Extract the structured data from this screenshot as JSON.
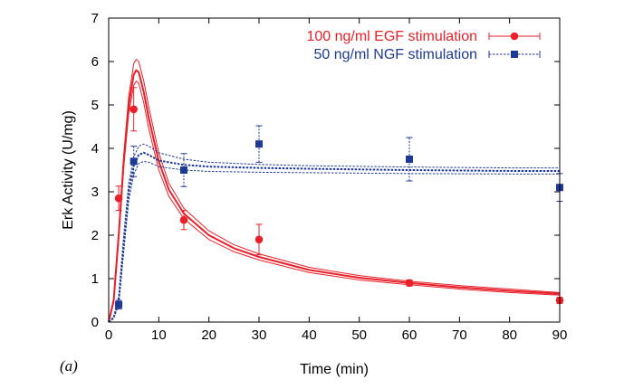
{
  "panel_label": "(a)",
  "chart_data": {
    "type": "line",
    "xlabel": "Time (min)",
    "ylabel": "Erk Activity (U/mg)",
    "xlim": [
      0,
      90
    ],
    "ylim": [
      0,
      7
    ],
    "x_ticks": [
      0,
      10,
      20,
      30,
      40,
      50,
      60,
      70,
      80,
      90
    ],
    "y_ticks": [
      0,
      1,
      2,
      3,
      4,
      5,
      6,
      7
    ],
    "grid": false,
    "legend_position": "top-right",
    "colors": {
      "egf": "#e8202a",
      "ngf": "#1f3a93"
    },
    "series": [
      {
        "name": "100 ng/ml EGF stimulation",
        "marker": "circle",
        "points": [
          {
            "x": 2,
            "y": 2.85,
            "err": 0.28
          },
          {
            "x": 5,
            "y": 4.9,
            "err": 0.5
          },
          {
            "x": 15,
            "y": 2.35,
            "err": 0.22
          },
          {
            "x": 30,
            "y": 1.9,
            "err": 0.35
          },
          {
            "x": 60,
            "y": 0.9,
            "err": 0.07
          },
          {
            "x": 90,
            "y": 0.5,
            "err": 0.07
          }
        ],
        "model_curves": [
          [
            [
              0,
              0
            ],
            [
              1,
              0.5
            ],
            [
              2,
              2.0
            ],
            [
              3,
              3.7
            ],
            [
              4,
              5.0
            ],
            [
              5,
              5.7
            ],
            [
              5.5,
              5.8
            ],
            [
              6,
              5.75
            ],
            [
              7,
              5.3
            ],
            [
              8,
              4.7
            ],
            [
              10,
              3.7
            ],
            [
              12,
              3.05
            ],
            [
              15,
              2.5
            ],
            [
              20,
              2.0
            ],
            [
              25,
              1.7
            ],
            [
              30,
              1.5
            ],
            [
              40,
              1.2
            ],
            [
              50,
              1.02
            ],
            [
              60,
              0.9
            ],
            [
              70,
              0.8
            ],
            [
              80,
              0.72
            ],
            [
              90,
              0.65
            ]
          ],
          [
            [
              0,
              0
            ],
            [
              1,
              0.55
            ],
            [
              2,
              2.1
            ],
            [
              3,
              3.85
            ],
            [
              4,
              5.2
            ],
            [
              5,
              5.95
            ],
            [
              5.5,
              6.05
            ],
            [
              6,
              6.0
            ],
            [
              7,
              5.55
            ],
            [
              8,
              4.95
            ],
            [
              10,
              3.9
            ],
            [
              12,
              3.2
            ],
            [
              15,
              2.62
            ],
            [
              20,
              2.1
            ],
            [
              25,
              1.78
            ],
            [
              30,
              1.57
            ],
            [
              40,
              1.26
            ],
            [
              50,
              1.07
            ],
            [
              60,
              0.94
            ],
            [
              70,
              0.84
            ],
            [
              80,
              0.76
            ],
            [
              90,
              0.68
            ]
          ],
          [
            [
              0,
              0
            ],
            [
              1,
              0.45
            ],
            [
              2,
              1.9
            ],
            [
              3,
              3.55
            ],
            [
              4,
              4.8
            ],
            [
              5,
              5.45
            ],
            [
              5.5,
              5.55
            ],
            [
              6,
              5.5
            ],
            [
              7,
              5.05
            ],
            [
              8,
              4.45
            ],
            [
              10,
              3.5
            ],
            [
              12,
              2.9
            ],
            [
              15,
              2.38
            ],
            [
              20,
              1.9
            ],
            [
              25,
              1.62
            ],
            [
              30,
              1.43
            ],
            [
              40,
              1.14
            ],
            [
              50,
              0.97
            ],
            [
              60,
              0.86
            ],
            [
              70,
              0.76
            ],
            [
              80,
              0.68
            ],
            [
              90,
              0.62
            ]
          ]
        ]
      },
      {
        "name": "50 ng/ml NGF stimulation",
        "marker": "square",
        "points": [
          {
            "x": 2,
            "y": 0.4,
            "err": 0.1
          },
          {
            "x": 5,
            "y": 3.7,
            "err": 0.35
          },
          {
            "x": 15,
            "y": 3.5,
            "err": 0.38
          },
          {
            "x": 30,
            "y": 4.1,
            "err": 0.42
          },
          {
            "x": 60,
            "y": 3.75,
            "err": 0.5
          },
          {
            "x": 90,
            "y": 3.1,
            "err": 0.32
          }
        ],
        "model_curves": [
          [
            [
              0,
              0
            ],
            [
              1,
              0.1
            ],
            [
              2,
              0.5
            ],
            [
              3,
              1.8
            ],
            [
              4,
              3.0
            ],
            [
              5,
              3.6
            ],
            [
              6,
              3.85
            ],
            [
              7,
              3.9
            ],
            [
              8,
              3.85
            ],
            [
              10,
              3.72
            ],
            [
              15,
              3.62
            ],
            [
              20,
              3.58
            ],
            [
              30,
              3.55
            ],
            [
              40,
              3.53
            ],
            [
              60,
              3.5
            ],
            [
              80,
              3.48
            ],
            [
              90,
              3.48
            ]
          ],
          [
            [
              0,
              0
            ],
            [
              1,
              0.12
            ],
            [
              2,
              0.6
            ],
            [
              3,
              2.0
            ],
            [
              4,
              3.2
            ],
            [
              5,
              3.8
            ],
            [
              6,
              4.05
            ],
            [
              7,
              4.1
            ],
            [
              8,
              4.05
            ],
            [
              10,
              3.9
            ],
            [
              15,
              3.75
            ],
            [
              20,
              3.68
            ],
            [
              30,
              3.63
            ],
            [
              40,
              3.6
            ],
            [
              60,
              3.57
            ],
            [
              80,
              3.55
            ],
            [
              90,
              3.55
            ]
          ],
          [
            [
              0,
              0
            ],
            [
              1,
              0.08
            ],
            [
              2,
              0.4
            ],
            [
              3,
              1.6
            ],
            [
              4,
              2.8
            ],
            [
              5,
              3.4
            ],
            [
              6,
              3.65
            ],
            [
              7,
              3.7
            ],
            [
              8,
              3.68
            ],
            [
              10,
              3.58
            ],
            [
              15,
              3.5
            ],
            [
              20,
              3.47
            ],
            [
              30,
              3.45
            ],
            [
              40,
              3.44
            ],
            [
              60,
              3.42
            ],
            [
              80,
              3.41
            ],
            [
              90,
              3.41
            ]
          ]
        ]
      }
    ]
  }
}
